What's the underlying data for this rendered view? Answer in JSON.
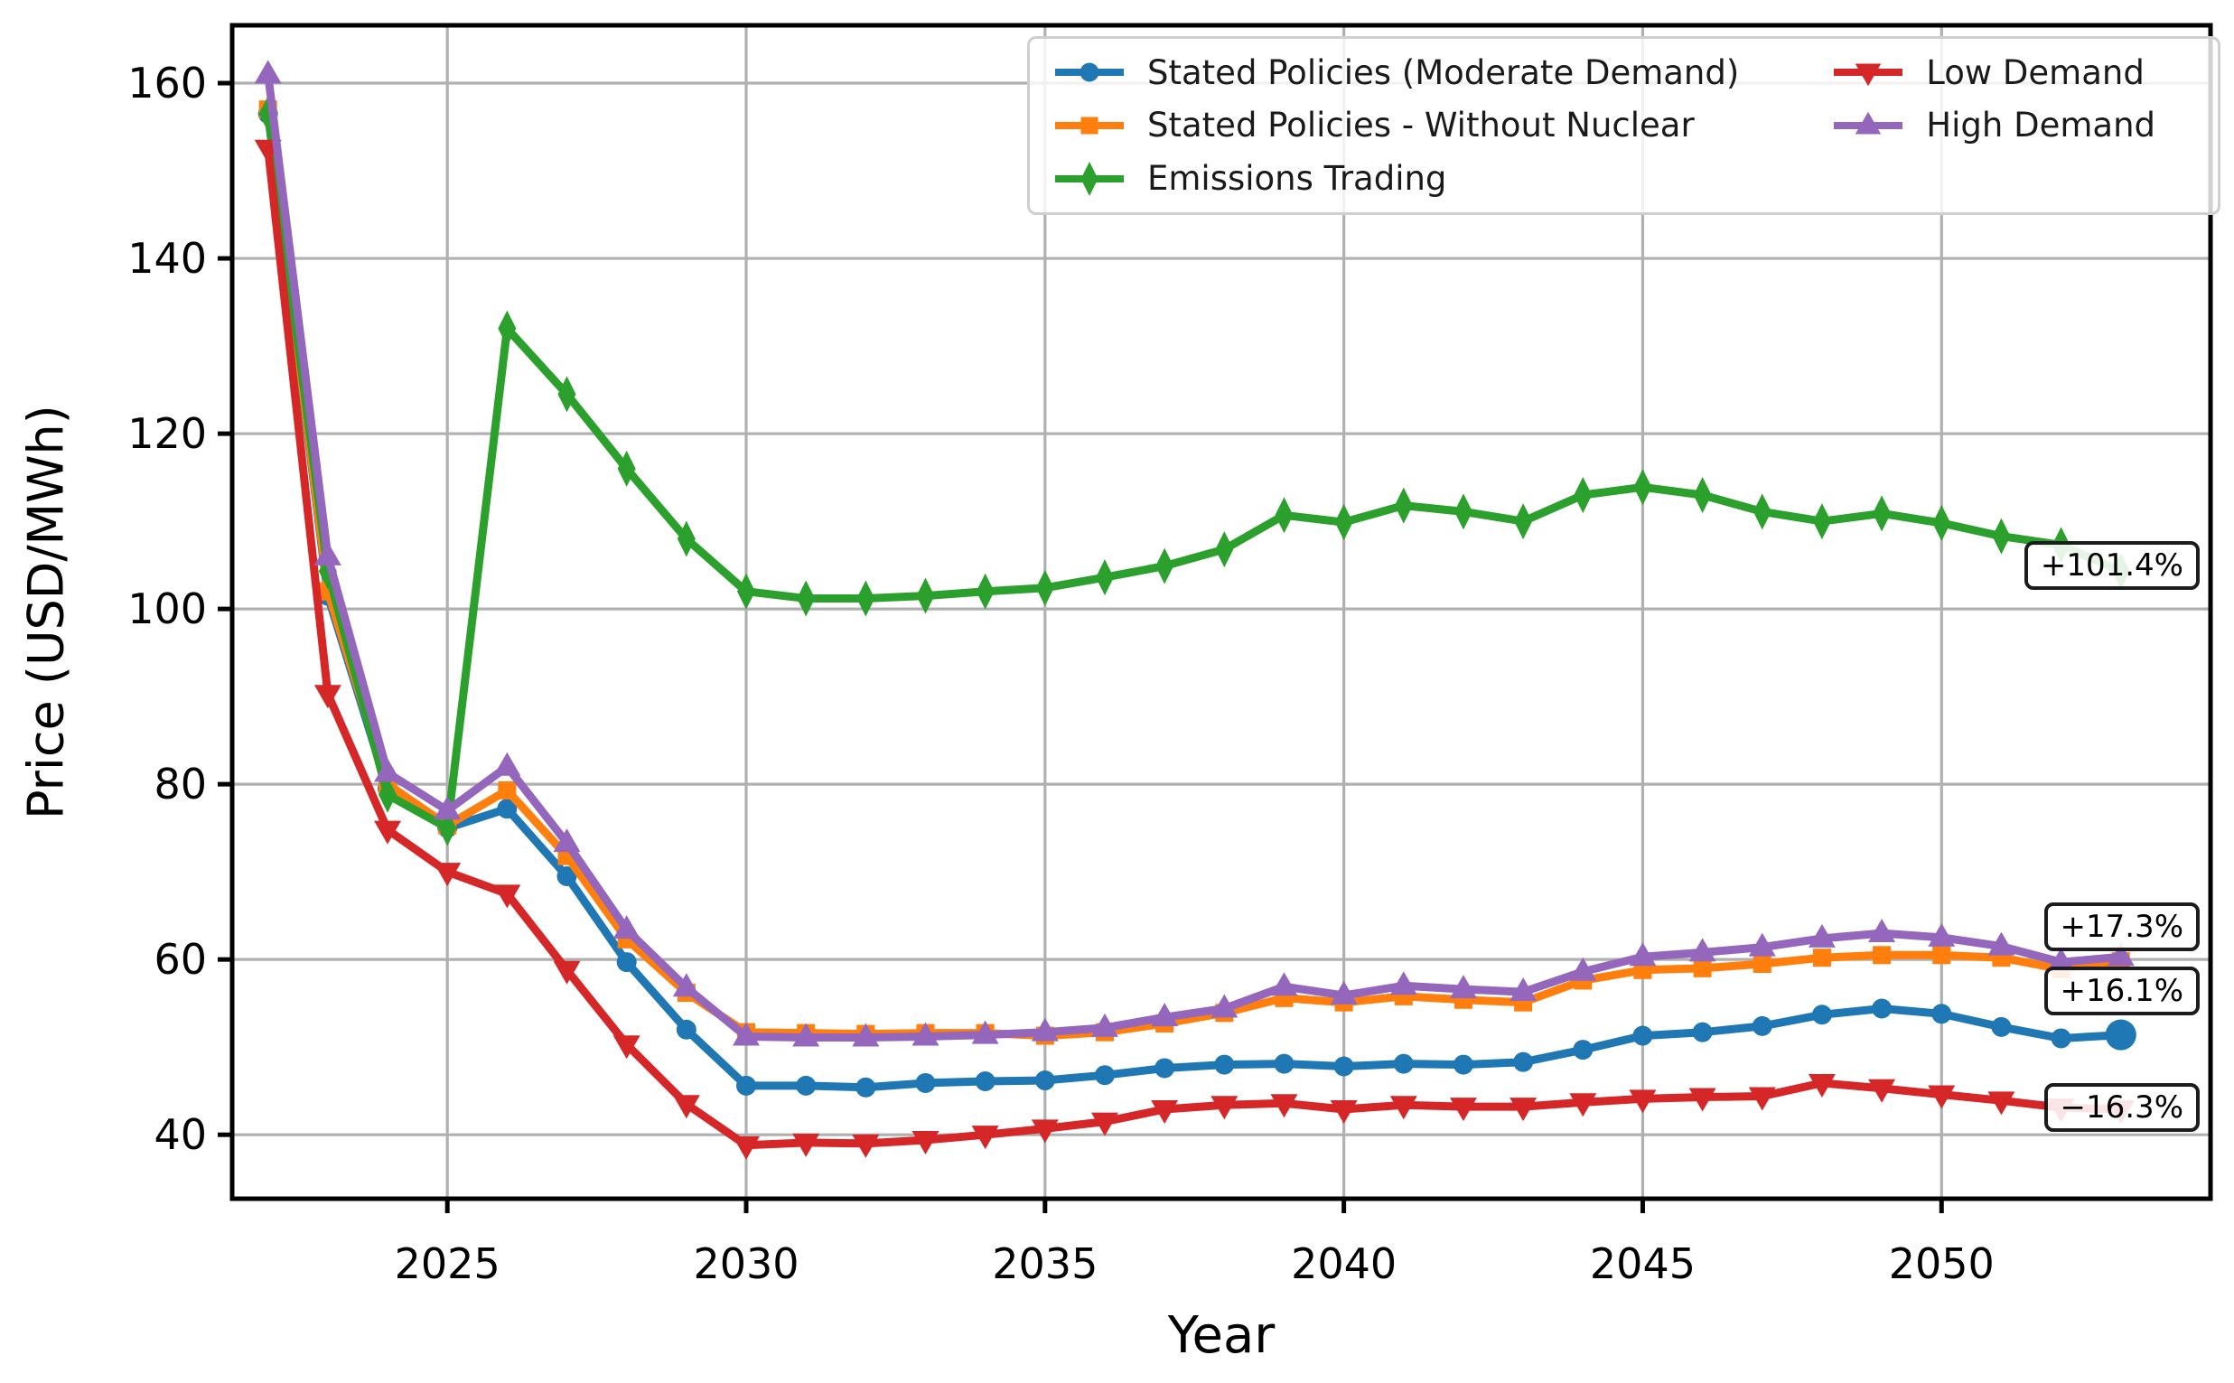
{
  "figure": {
    "background": "#ffffff"
  },
  "chart_data": {
    "type": "line",
    "title": "",
    "xlabel": "Year",
    "ylabel": "Price (USD/MWh)",
    "x": [
      2022,
      2023,
      2024,
      2025,
      2026,
      2027,
      2028,
      2029,
      2030,
      2031,
      2032,
      2033,
      2034,
      2035,
      2036,
      2037,
      2038,
      2039,
      2040,
      2041,
      2042,
      2043,
      2044,
      2045,
      2046,
      2047,
      2048,
      2049,
      2050,
      2051,
      2052,
      2053
    ],
    "series": [
      {
        "name": "Stated Policies (Moderate Demand)",
        "color": "#1f77b4",
        "marker": "circle",
        "end_marker_scale": 1.55,
        "values": [
          156.5,
          101.5,
          79.5,
          75.0,
          77.2,
          69.5,
          59.7,
          52.0,
          45.6,
          45.6,
          45.4,
          45.9,
          46.1,
          46.2,
          46.8,
          47.6,
          48.0,
          48.1,
          47.8,
          48.1,
          48.0,
          48.3,
          49.7,
          51.3,
          51.7,
          52.4,
          53.7,
          54.4,
          53.8,
          52.3,
          51.0,
          51.4
        ]
      },
      {
        "name": "Stated Policies - Without Nuclear",
        "color": "#ff7f0e",
        "marker": "square",
        "end_marker_scale": 1,
        "values": [
          157.0,
          102.0,
          80.0,
          75.3,
          79.3,
          71.8,
          62.3,
          56.2,
          51.7,
          51.6,
          51.5,
          51.6,
          51.6,
          51.3,
          51.7,
          52.7,
          53.9,
          55.6,
          55.1,
          55.8,
          55.4,
          55.1,
          57.6,
          58.8,
          59.0,
          59.5,
          60.2,
          60.5,
          60.5,
          60.2,
          58.9,
          59.8
        ]
      },
      {
        "name": "Emissions Trading",
        "color": "#2ca02c",
        "marker": "thin-diamond",
        "end_marker_scale": 1,
        "values": [
          156.5,
          104.3,
          78.8,
          75.0,
          132.0,
          124.5,
          116.0,
          108.0,
          102.0,
          101.2,
          101.2,
          101.5,
          102.0,
          102.4,
          103.6,
          104.9,
          106.8,
          110.7,
          109.9,
          111.8,
          111.1,
          110.0,
          113.0,
          113.9,
          113.0,
          111.1,
          110.0,
          110.9,
          109.8,
          108.3,
          107.3,
          104.3
        ]
      },
      {
        "name": "Low Demand",
        "color": "#d62728",
        "marker": "triangle-down",
        "end_marker_scale": 1,
        "values": [
          152.5,
          90.3,
          74.8,
          70.0,
          67.5,
          58.8,
          50.3,
          43.5,
          38.8,
          39.1,
          39.0,
          39.4,
          40.0,
          40.7,
          41.5,
          42.9,
          43.4,
          43.6,
          42.9,
          43.4,
          43.2,
          43.2,
          43.7,
          44.1,
          44.3,
          44.4,
          45.9,
          45.3,
          44.6,
          43.9,
          43.1,
          42.9
        ]
      },
      {
        "name": "High Demand",
        "color": "#9467bd",
        "marker": "triangle-up",
        "end_marker_scale": 1,
        "values": [
          161.0,
          106.0,
          81.3,
          77.0,
          82.0,
          73.3,
          63.4,
          56.8,
          51.2,
          51.1,
          51.1,
          51.2,
          51.4,
          51.7,
          52.2,
          53.4,
          54.4,
          56.9,
          55.9,
          57.0,
          56.6,
          56.3,
          58.6,
          60.3,
          60.8,
          61.4,
          62.4,
          63.0,
          62.5,
          61.5,
          59.7,
          60.3
        ]
      }
    ],
    "x_tick_labels": [
      "2025",
      "2030",
      "2035",
      "2040",
      "2045",
      "2050"
    ],
    "x_tick_years": [
      2025,
      2030,
      2035,
      2040,
      2045,
      2050
    ],
    "y_ticks": [
      40,
      60,
      80,
      100,
      120,
      140,
      160
    ],
    "xlim": [
      2021.4,
      2054.5
    ],
    "ylim": [
      32.7,
      166.6
    ],
    "grid": true,
    "grid_color": "#b0b0b0",
    "spine_color": "#000000",
    "legend_position": "upper right",
    "annotations": [
      {
        "text": "+101.4%",
        "value": 104.8
      },
      {
        "text": "+17.3%",
        "value": 63.5
      },
      {
        "text": "+16.1%",
        "value": 56.2
      },
      {
        "text": "−16.3%",
        "value": 42.9
      }
    ]
  }
}
